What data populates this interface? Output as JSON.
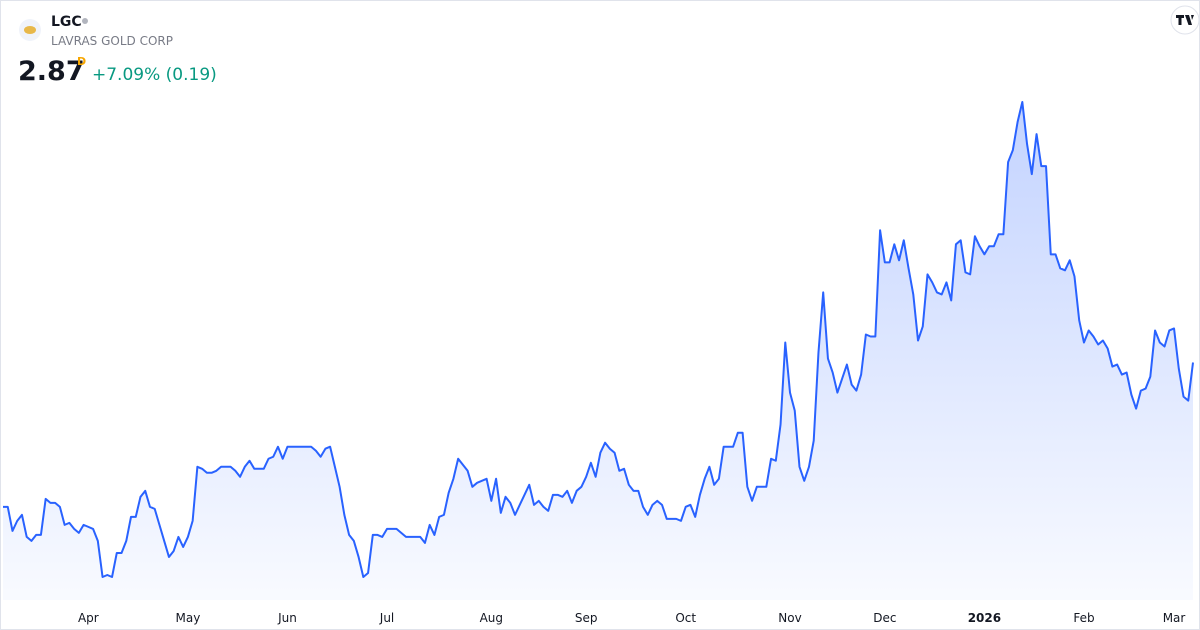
{
  "chart_data": {
    "type": "area",
    "ticker": "LGC",
    "company": "LAVRAS GOLD CORP",
    "price": 2.87,
    "interval": "D",
    "change": "+7.09% (0.19)",
    "color": "#2962ff",
    "values": [
      2.15,
      2.15,
      2.03,
      2.08,
      2.11,
      2.0,
      1.98,
      2.01,
      2.01,
      2.19,
      2.17,
      2.17,
      2.15,
      2.06,
      2.07,
      2.04,
      2.02,
      2.06,
      2.05,
      2.04,
      1.98,
      1.8,
      1.81,
      1.8,
      1.92,
      1.92,
      1.98,
      2.1,
      2.1,
      2.2,
      2.23,
      2.15,
      2.14,
      2.06,
      1.98,
      1.9,
      1.93,
      2.0,
      1.95,
      2.0,
      2.08,
      2.35,
      2.34,
      2.32,
      2.32,
      2.33,
      2.35,
      2.35,
      2.35,
      2.33,
      2.3,
      2.35,
      2.38,
      2.34,
      2.34,
      2.34,
      2.39,
      2.4,
      2.45,
      2.39,
      2.45,
      2.45,
      2.45,
      2.45,
      2.45,
      2.45,
      2.43,
      2.4,
      2.44,
      2.45,
      2.35,
      2.25,
      2.11,
      2.01,
      1.98,
      1.9,
      1.8,
      1.82,
      2.01,
      2.01,
      2.0,
      2.04,
      2.04,
      2.04,
      2.02,
      2.0,
      2.0,
      2.0,
      2.0,
      1.97,
      2.06,
      2.01,
      2.1,
      2.11,
      2.22,
      2.29,
      2.39,
      2.36,
      2.33,
      2.25,
      2.27,
      2.28,
      2.29,
      2.18,
      2.29,
      2.12,
      2.2,
      2.17,
      2.11,
      2.16,
      2.21,
      2.26,
      2.16,
      2.18,
      2.15,
      2.13,
      2.21,
      2.21,
      2.2,
      2.23,
      2.17,
      2.23,
      2.25,
      2.3,
      2.37,
      2.3,
      2.42,
      2.47,
      2.44,
      2.42,
      2.33,
      2.34,
      2.26,
      2.23,
      2.23,
      2.15,
      2.11,
      2.16,
      2.18,
      2.16,
      2.09,
      2.09,
      2.09,
      2.08,
      2.15,
      2.16,
      2.1,
      2.21,
      2.29,
      2.35,
      2.26,
      2.29,
      2.45,
      2.45,
      2.45,
      2.52,
      2.52,
      2.25,
      2.18,
      2.25,
      2.25,
      2.25,
      2.39,
      2.38,
      2.56,
      2.97,
      2.72,
      2.63,
      2.35,
      2.28,
      2.35,
      2.48,
      2.92,
      3.22,
      2.89,
      2.82,
      2.72,
      2.79,
      2.86,
      2.76,
      2.73,
      2.81,
      3.01,
      3.0,
      3.0,
      3.53,
      3.37,
      3.37,
      3.46,
      3.38,
      3.48,
      3.34,
      3.21,
      2.98,
      3.05,
      3.31,
      3.27,
      3.22,
      3.21,
      3.27,
      3.18,
      3.46,
      3.48,
      3.32,
      3.31,
      3.5,
      3.45,
      3.41,
      3.45,
      3.45,
      3.51,
      3.51,
      3.87,
      3.93,
      4.07,
      4.17,
      3.96,
      3.81,
      4.01,
      3.85,
      3.85,
      3.41,
      3.41,
      3.34,
      3.33,
      3.38,
      3.3,
      3.08,
      2.97,
      3.03,
      3.0,
      2.96,
      2.98,
      2.94,
      2.85,
      2.86,
      2.81,
      2.82,
      2.71,
      2.64,
      2.73,
      2.74,
      2.8,
      3.03,
      2.97,
      2.95,
      3.03,
      3.04,
      2.84,
      2.7,
      2.68,
      2.87
    ],
    "xticks": [
      {
        "value": 18,
        "label": "Apr"
      },
      {
        "value": 39,
        "label": "May"
      },
      {
        "value": 60,
        "label": "Jun"
      },
      {
        "value": 81,
        "label": "Jul"
      },
      {
        "value": 103,
        "label": "Aug"
      },
      {
        "value": 123,
        "label": "Sep"
      },
      {
        "value": 144,
        "label": "Oct"
      },
      {
        "value": 166,
        "label": "Nov"
      },
      {
        "value": 186,
        "label": "Dec"
      },
      {
        "value": 207,
        "label": "2026"
      },
      {
        "value": 228,
        "label": "Feb"
      },
      {
        "value": 247,
        "label": "Mar"
      }
    ]
  }
}
